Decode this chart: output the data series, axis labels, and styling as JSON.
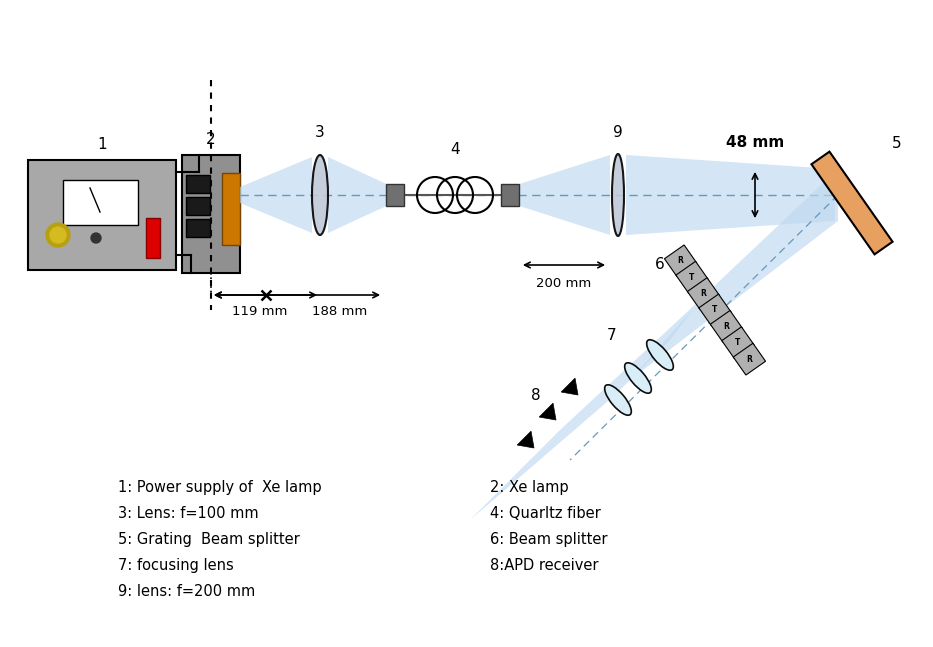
{
  "bg_color": "#ffffff",
  "beam_color": "#bdd8f0",
  "beam_alpha": 0.65,
  "dashed_color": "#6699bb",
  "grating_color": "#e8a060",
  "label_fontsize": 11,
  "legend_fontsize": 10.5,
  "legend_lines": [
    "1: Power supply of  Xe lamp",
    "3: Lens: f=100 mm",
    "5: Grating  Beam splitter",
    "7: focusing lens",
    "9: lens: f=200 mm"
  ],
  "legend_lines_right": [
    "2: Xe lamp",
    "4: Quarltz fiber",
    "6: Beam splitter",
    "8:APD receiver"
  ],
  "dim_119_text": "119 mm",
  "dim_188_text": "188 mm",
  "dim_200_text": "200 mm",
  "dim_48_text": "48 mm"
}
